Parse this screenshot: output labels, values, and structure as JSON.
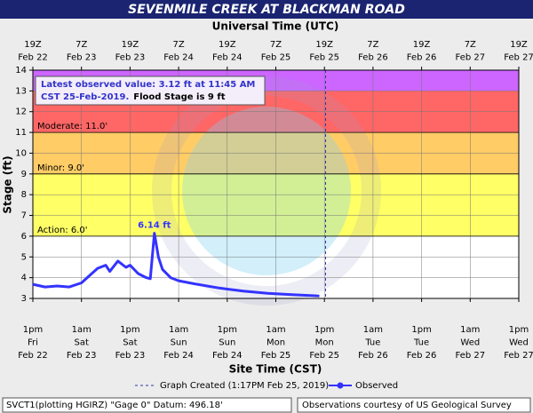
{
  "chart_data": {
    "type": "line",
    "title": "SEVENMILE CREEK AT BLACKMAN ROAD",
    "top_axis_title": "Universal Time (UTC)",
    "x_axis_title": "Site Time (CST)",
    "y_axis_title": "Stage (ft)",
    "xlim": [
      "Feb 22 1pm",
      "Feb 27 1pm"
    ],
    "ylim": [
      3,
      14
    ],
    "yticks": [
      3,
      4,
      5,
      6,
      7,
      8,
      9,
      10,
      11,
      12,
      13,
      14
    ],
    "grid": true,
    "xticks_top": [
      {
        "value": "Feb 22 1pm",
        "label": [
          "19Z",
          "Feb 22"
        ]
      },
      {
        "value": "Feb 23 1am",
        "label": [
          "7Z",
          "Feb 23"
        ]
      },
      {
        "value": "Feb 23 1pm",
        "label": [
          "19Z",
          "Feb 23"
        ]
      },
      {
        "value": "Feb 24 1am",
        "label": [
          "7Z",
          "Feb 24"
        ]
      },
      {
        "value": "Feb 24 1pm",
        "label": [
          "19Z",
          "Feb 24"
        ]
      },
      {
        "value": "Feb 25 1am",
        "label": [
          "7Z",
          "Feb 25"
        ]
      },
      {
        "value": "Feb 25 1pm",
        "label": [
          "19Z",
          "Feb 25"
        ]
      },
      {
        "value": "Feb 26 1am",
        "label": [
          "7Z",
          "Feb 26"
        ]
      },
      {
        "value": "Feb 26 1pm",
        "label": [
          "19Z",
          "Feb 26"
        ]
      },
      {
        "value": "Feb 27 1am",
        "label": [
          "7Z",
          "Feb 27"
        ]
      },
      {
        "value": "Feb 27 1pm",
        "label": [
          "19Z",
          "Feb 27"
        ]
      }
    ],
    "xticks": [
      {
        "value": "Feb 22 1pm",
        "label": [
          "1pm",
          "Fri",
          "Feb 22"
        ]
      },
      {
        "value": "Feb 23 1am",
        "label": [
          "1am",
          "Sat",
          "Feb 23"
        ]
      },
      {
        "value": "Feb 23 1pm",
        "label": [
          "1pm",
          "Sat",
          "Feb 23"
        ]
      },
      {
        "value": "Feb 24 1am",
        "label": [
          "1am",
          "Sun",
          "Feb 24"
        ]
      },
      {
        "value": "Feb 24 1pm",
        "label": [
          "1pm",
          "Sun",
          "Feb 24"
        ]
      },
      {
        "value": "Feb 25 1am",
        "label": [
          "1am",
          "Mon",
          "Feb 25"
        ]
      },
      {
        "value": "Feb 25 1pm",
        "label": [
          "1pm",
          "Mon",
          "Feb 25"
        ]
      },
      {
        "value": "Feb 26 1am",
        "label": [
          "1am",
          "Tue",
          "Feb 26"
        ]
      },
      {
        "value": "Feb 26 1pm",
        "label": [
          "1pm",
          "Tue",
          "Feb 26"
        ]
      },
      {
        "value": "Feb 27 1am",
        "label": [
          "1am",
          "Wed",
          "Feb 27"
        ]
      },
      {
        "value": "Feb 27 1pm",
        "label": [
          "1pm",
          "Wed",
          "Feb 27"
        ]
      }
    ],
    "flood_bands": [
      {
        "from": 6,
        "color": "#ffff66",
        "label": "Action: 6.0'"
      },
      {
        "from": 9,
        "color": "#ffcc66",
        "label": "Minor: 9.0'"
      },
      {
        "from": 11,
        "color": "#ff6666",
        "label": "Moderate: 11.0'"
      },
      {
        "from": 13,
        "color": "#cc66ff"
      }
    ],
    "x": [
      "Feb 22 1pm",
      "Feb 22 4pm",
      "Feb 22 7pm",
      "Feb 22 10pm",
      "Feb 23 1am",
      "Feb 23 3am",
      "Feb 23 5am",
      "Feb 23 7am",
      "Feb 23 8am",
      "Feb 23 10am",
      "Feb 23 12pm",
      "Feb 23 1pm",
      "Feb 23 3pm",
      "Feb 23 5pm",
      "Feb 23 6pm",
      "Feb 23 7pm",
      "Feb 23 8pm",
      "Feb 23 9pm",
      "Feb 23 11pm",
      "Feb 24 1am",
      "Feb 24 5am",
      "Feb 24 11am",
      "Feb 24 5pm",
      "Feb 24 11pm",
      "Feb 25 5am",
      "Feb 25 11:45am"
    ],
    "series": [
      {
        "name": "Observed",
        "color": "#3333ff",
        "values": [
          3.68,
          3.55,
          3.6,
          3.55,
          3.75,
          4.1,
          4.45,
          4.6,
          4.3,
          4.8,
          4.5,
          4.6,
          4.2,
          4.0,
          3.95,
          6.14,
          5.0,
          4.4,
          4.0,
          3.85,
          3.7,
          3.5,
          3.35,
          3.25,
          3.18,
          3.12
        ]
      }
    ],
    "peak_label": "6.14 ft",
    "latest_observed": [
      "Latest observed value: 3.12 ft at 11:45 AM",
      "CST 25-Feb-2019."
    ],
    "flood_stage_note": "Flood Stage is 9 ft",
    "created_legend": "Graph Created (1:17PM Feb 25, 2019)",
    "footer_left": "SVCT1(plotting HGIRZ) \"Gage 0\" Datum: 496.18'",
    "footer_right": "Observations courtesy of US Geological Survey"
  }
}
